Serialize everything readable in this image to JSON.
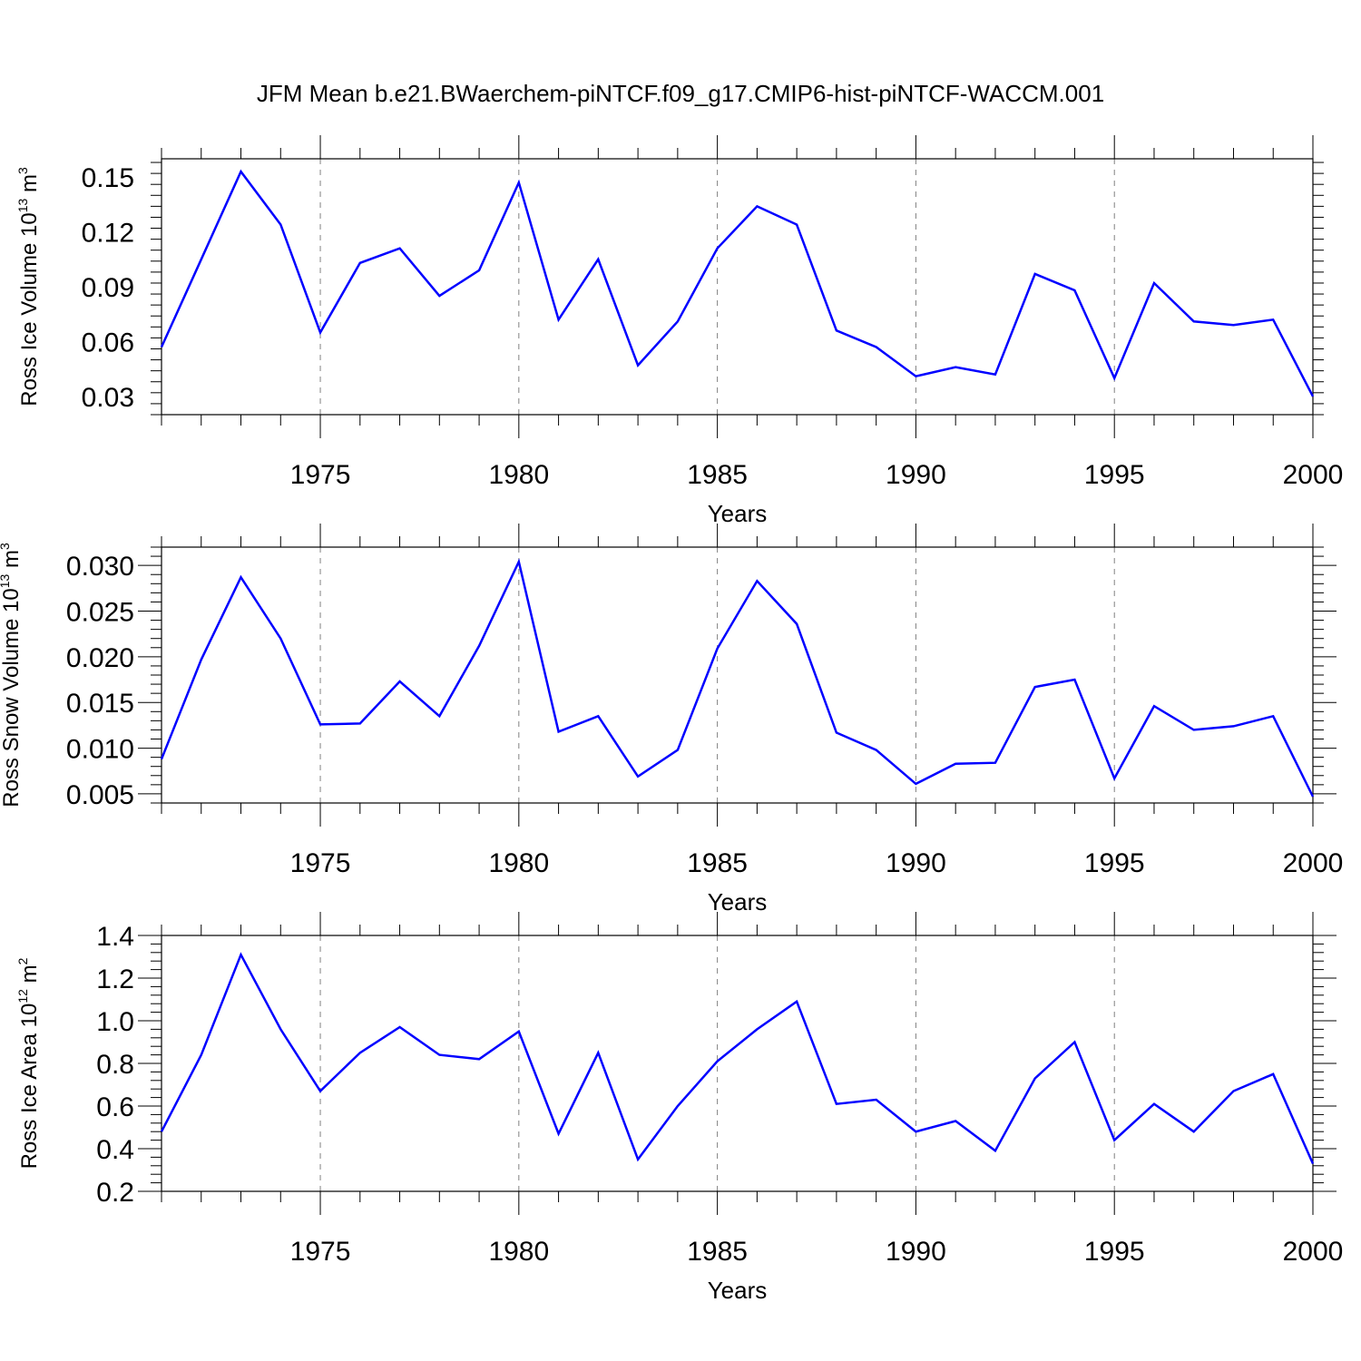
{
  "title": "JFM Mean b.e21.BWaerchem-piNTCF.f09_g17.CMIP6-hist-piNTCF-WACCM.001",
  "colors": {
    "line": "#0000ff",
    "axis": "#000000",
    "grid": "#808080"
  },
  "chart_data": [
    {
      "type": "line",
      "ylabel": {
        "text": "Ross Ice Volume 10",
        "exp": "13",
        "unit": "m",
        "unit_exp": "3"
      },
      "xlabel": "Years",
      "xlim": [
        1971,
        2000
      ],
      "ylim": [
        0.02,
        0.16
      ],
      "yticks": [
        "0.03",
        "0.06",
        "0.09",
        "0.12",
        "0.15"
      ],
      "xticks": [
        "1975",
        "1980",
        "1985",
        "1990",
        "1995",
        "2000"
      ],
      "grid": "vertical dashed at major x ticks",
      "x": [
        1971,
        1972,
        1973,
        1974,
        1975,
        1976,
        1977,
        1978,
        1979,
        1980,
        1981,
        1982,
        1983,
        1984,
        1985,
        1986,
        1987,
        1988,
        1989,
        1990,
        1991,
        1992,
        1993,
        1994,
        1995,
        1996,
        1997,
        1998,
        1999,
        2000
      ],
      "values": [
        0.057,
        0.105,
        0.153,
        0.124,
        0.065,
        0.103,
        0.111,
        0.085,
        0.099,
        0.147,
        0.072,
        0.105,
        0.047,
        0.071,
        0.111,
        0.134,
        0.124,
        0.066,
        0.057,
        0.041,
        0.046,
        0.042,
        0.097,
        0.088,
        0.04,
        0.092,
        0.071,
        0.069,
        0.072,
        0.03
      ]
    },
    {
      "type": "line",
      "ylabel": {
        "text": "Ross Snow Volume 10",
        "exp": "13",
        "unit": "m",
        "unit_exp": "3"
      },
      "xlabel": "Years",
      "xlim": [
        1971,
        2000
      ],
      "ylim": [
        0.004,
        0.032
      ],
      "yticks": [
        "0.005",
        "0.010",
        "0.015",
        "0.020",
        "0.025",
        "0.030"
      ],
      "xticks": [
        "1975",
        "1980",
        "1985",
        "1990",
        "1995",
        "2000"
      ],
      "grid": "vertical dashed at major x ticks",
      "x": [
        1971,
        1972,
        1973,
        1974,
        1975,
        1976,
        1977,
        1978,
        1979,
        1980,
        1981,
        1982,
        1983,
        1984,
        1985,
        1986,
        1987,
        1988,
        1989,
        1990,
        1991,
        1992,
        1993,
        1994,
        1995,
        1996,
        1997,
        1998,
        1999,
        2000
      ],
      "values": [
        0.0088,
        0.0197,
        0.0287,
        0.022,
        0.0126,
        0.0127,
        0.0173,
        0.0135,
        0.0212,
        0.0304,
        0.0118,
        0.0135,
        0.0069,
        0.0098,
        0.0209,
        0.0283,
        0.0236,
        0.0117,
        0.0098,
        0.0061,
        0.0083,
        0.0084,
        0.0167,
        0.0175,
        0.0067,
        0.0146,
        0.012,
        0.0124,
        0.0135,
        0.0047
      ]
    },
    {
      "type": "line",
      "ylabel": {
        "text": "Ross Ice Area 10",
        "exp": "12",
        "unit": "m",
        "unit_exp": "2"
      },
      "xlabel": "Years",
      "xlim": [
        1971,
        2000
      ],
      "ylim": [
        0.2,
        1.4
      ],
      "yticks": [
        "0.2",
        "0.4",
        "0.6",
        "0.8",
        "1.0",
        "1.2",
        "1.4"
      ],
      "xticks": [
        "1975",
        "1980",
        "1985",
        "1990",
        "1995",
        "2000"
      ],
      "grid": "vertical dashed at major x ticks",
      "x": [
        1971,
        1972,
        1973,
        1974,
        1975,
        1976,
        1977,
        1978,
        1979,
        1980,
        1981,
        1982,
        1983,
        1984,
        1985,
        1986,
        1987,
        1988,
        1989,
        1990,
        1991,
        1992,
        1993,
        1994,
        1995,
        1996,
        1997,
        1998,
        1999,
        2000
      ],
      "values": [
        0.48,
        0.84,
        1.31,
        0.96,
        0.67,
        0.85,
        0.97,
        0.84,
        0.82,
        0.95,
        0.47,
        0.85,
        0.35,
        0.6,
        0.81,
        0.96,
        1.09,
        0.61,
        0.63,
        0.48,
        0.53,
        0.39,
        0.73,
        0.9,
        0.44,
        0.61,
        0.48,
        0.67,
        0.75,
        0.33
      ]
    }
  ]
}
